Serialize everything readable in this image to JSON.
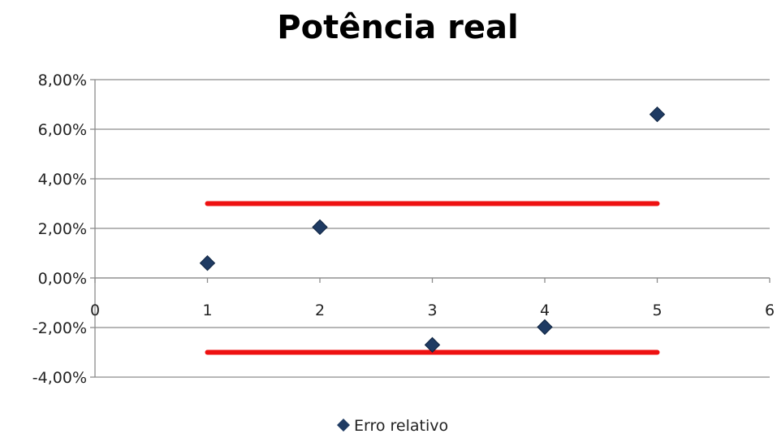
{
  "chart_data": {
    "type": "scatter",
    "title": "Potência real",
    "xlabel": "",
    "ylabel": "",
    "xlim": [
      0,
      6
    ],
    "ylim": [
      -0.04,
      0.08
    ],
    "x_ticks": [
      "0",
      "1",
      "2",
      "3",
      "4",
      "5",
      "6"
    ],
    "y_ticks": [
      "8,00%",
      "6,00%",
      "4,00%",
      "2,00%",
      "0,00%",
      "-2,00%",
      "-4,00%"
    ],
    "grid": "horizontal",
    "legend_position": "bottom",
    "series": [
      {
        "name": "Erro relativo",
        "marker": "diamond",
        "color": "#1F3B63",
        "x": [
          1,
          2,
          3,
          4,
          5
        ],
        "y": [
          0.006,
          0.0205,
          -0.027,
          -0.0198,
          0.066
        ]
      }
    ],
    "reference_lines": [
      {
        "y": 0.03,
        "x": [
          1,
          5
        ],
        "color": "#EE1111"
      },
      {
        "y": -0.03,
        "x": [
          1,
          5
        ],
        "color": "#EE1111"
      }
    ]
  }
}
